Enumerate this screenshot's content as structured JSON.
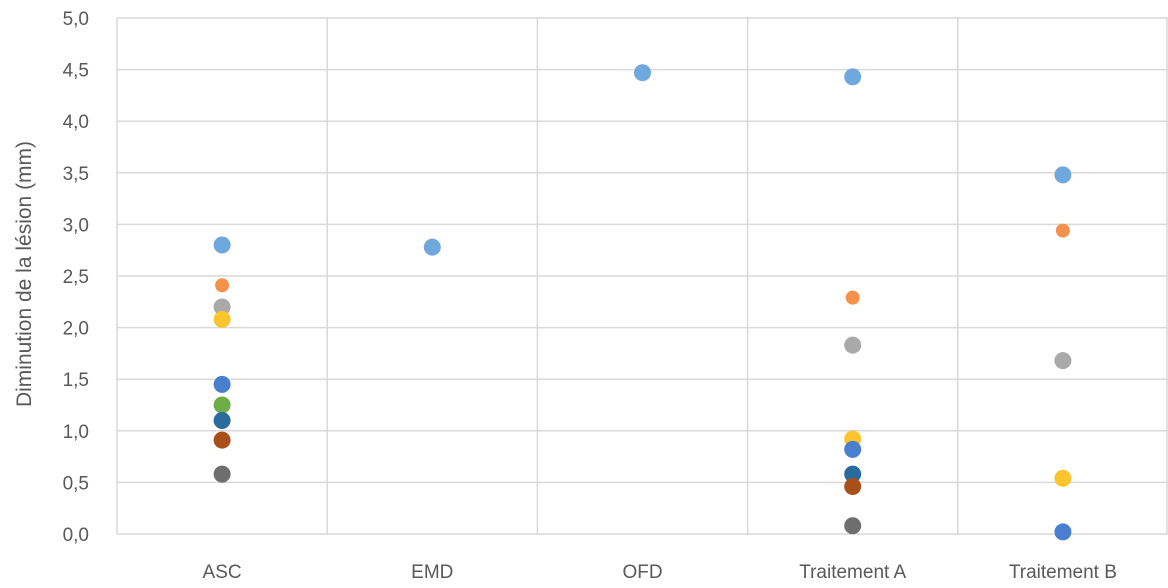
{
  "chart_data": {
    "type": "scatter",
    "title": "",
    "xlabel": "",
    "ylabel": "Diminution de la lésion (mm)",
    "categories": [
      "ASC",
      "EMD",
      "OFD",
      "Traitement A",
      "Traitement B"
    ],
    "ylim": [
      0,
      5
    ],
    "ytick_values": [
      0,
      0.5,
      1,
      1.5,
      2,
      2.5,
      3,
      3.5,
      4,
      4.5,
      5
    ],
    "ytick_labels": [
      "0,0",
      "0,5",
      "1,0",
      "1,5",
      "2,0",
      "2,5",
      "3,0",
      "3,5",
      "4,0",
      "4,5",
      "5,0"
    ],
    "grid": true,
    "legend": "none",
    "series": [
      {
        "color": "#6fa8dc",
        "values": [
          2.8,
          2.78,
          4.47,
          4.43,
          3.48
        ]
      },
      {
        "color": "#f4914a",
        "values": [
          2.41,
          null,
          null,
          2.29,
          2.94
        ]
      },
      {
        "color": "#a9a9a9",
        "values": [
          2.2,
          null,
          null,
          1.83,
          1.68
        ]
      },
      {
        "color": "#fcc42d",
        "values": [
          2.08,
          null,
          null,
          0.92,
          0.54
        ]
      },
      {
        "color": "#4a7fcf",
        "values": [
          1.45,
          null,
          null,
          0.82,
          0.02
        ]
      },
      {
        "color": "#6fae47",
        "values": [
          1.25,
          null,
          null,
          null,
          null
        ]
      },
      {
        "color": "#2a6b9e",
        "values": [
          1.1,
          null,
          null,
          0.58,
          null
        ]
      },
      {
        "color": "#a9501a",
        "values": [
          0.91,
          null,
          null,
          0.46,
          null
        ]
      },
      {
        "color": "#6e6e6e",
        "values": [
          0.58,
          null,
          null,
          0.08,
          null
        ]
      }
    ]
  }
}
